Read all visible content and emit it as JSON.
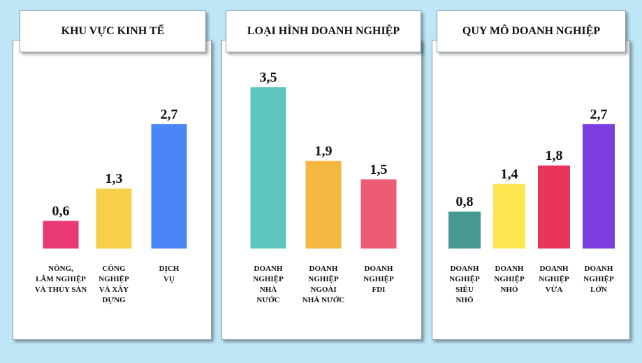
{
  "chart_data": [
    {
      "type": "bar",
      "title": "KHU VỰC KINH TẾ",
      "categories": [
        [
          "NÔNG,",
          "LÂM NGHIỆP",
          "VÀ THỦY SẢN"
        ],
        [
          "CÔNG",
          "NGHIỆP",
          "VÀ XÂY",
          "DỰNG"
        ],
        [
          "DỊCH",
          "VỤ"
        ]
      ],
      "values": [
        0.6,
        1.3,
        2.7
      ],
      "value_labels": [
        "0,6",
        "1,3",
        "2,7"
      ],
      "colors": [
        "#ea3873",
        "#f8cf4b",
        "#4b86f6"
      ],
      "ylim": [
        0,
        3.5
      ]
    },
    {
      "type": "bar",
      "title": "LOẠI HÌNH DOANH NGHIỆP",
      "categories": [
        [
          "DOANH",
          "NGHIỆP",
          "NHÀ",
          "NƯỚC"
        ],
        [
          "DOANH",
          "NGHIỆP",
          "NGOÀI",
          "NHÀ NƯỚC"
        ],
        [
          "DOANH",
          "NGHIỆP",
          "FDI"
        ]
      ],
      "values": [
        3.5,
        1.9,
        1.5
      ],
      "value_labels": [
        "3,5",
        "1,9",
        "1,5"
      ],
      "colors": [
        "#5cc7bd",
        "#f4b740",
        "#ec5c73"
      ],
      "ylim": [
        0,
        3.5
      ]
    },
    {
      "type": "bar",
      "title": "QUY MÔ DOANH NGHIỆP",
      "categories": [
        [
          "DOANH",
          "NGHIỆP",
          "SIÊU",
          "NHỎ"
        ],
        [
          "DOANH",
          "NGHIỆP",
          "NHỎ"
        ],
        [
          "DOANH",
          "NGHIỆP",
          "VỪA"
        ],
        [
          "DOANH",
          "NGHIỆP",
          "LỚN"
        ]
      ],
      "values": [
        0.8,
        1.4,
        1.8,
        2.7
      ],
      "value_labels": [
        "0,8",
        "1,4",
        "1,8",
        "2,7"
      ],
      "colors": [
        "#45998e",
        "#fbe64f",
        "#e9345c",
        "#7b3de1"
      ],
      "ylim": [
        0,
        3.5
      ]
    }
  ]
}
